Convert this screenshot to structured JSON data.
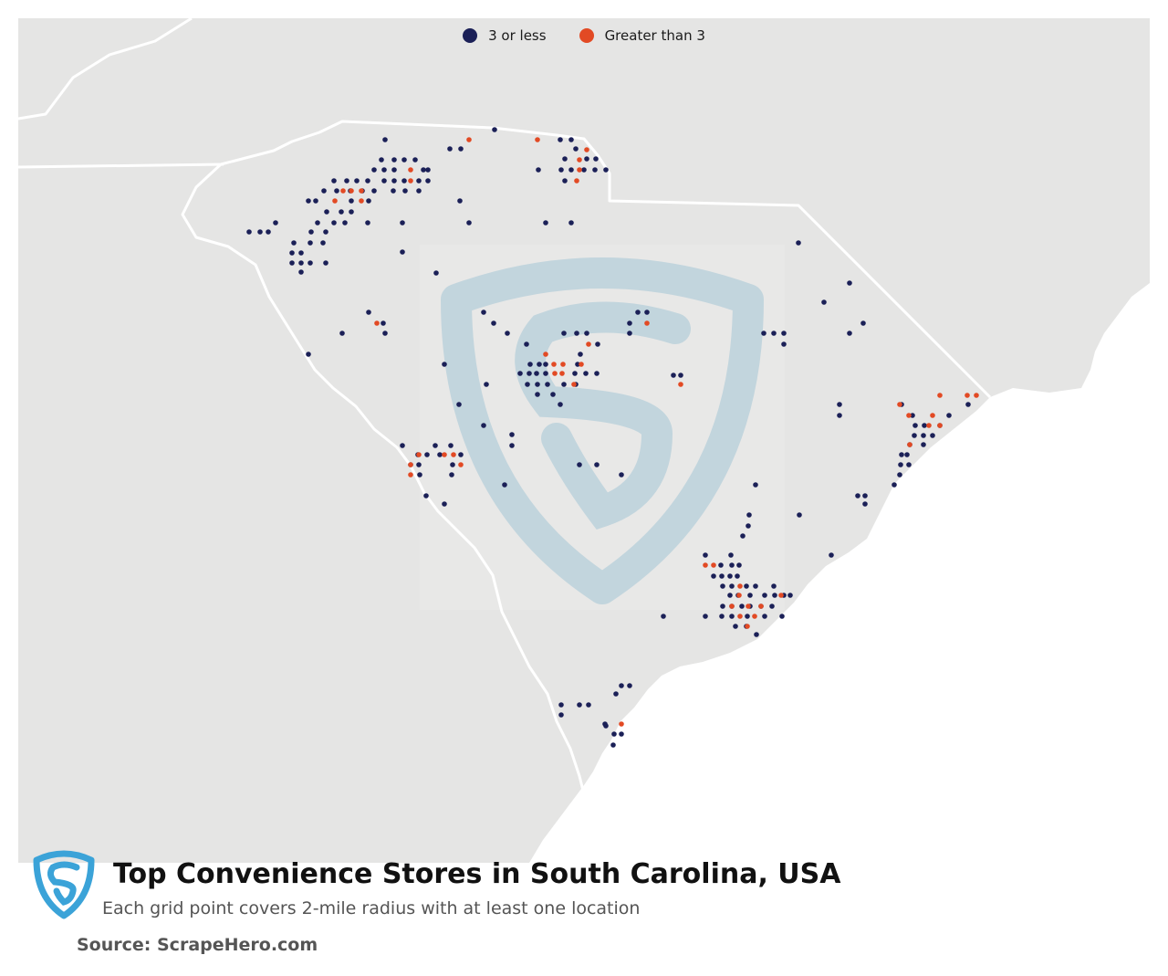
{
  "legend": {
    "low_label": "3 or less",
    "high_label": "Greater than 3"
  },
  "colors": {
    "low": "#1b2057",
    "high": "#e24a24",
    "land": "#e5e5e4",
    "ocean": "#ffffff",
    "border": "#ffffff",
    "watermark": "#a3c4d6",
    "logo": "#3ba3d8"
  },
  "footer": {
    "title": "Top Convenience Stores in South Carolina, USA",
    "subtitle": "Each grid point covers 2-mile radius with at least one location",
    "source": "Source: ScrapeHero.com"
  },
  "icons": {
    "logo": "scrapehero-shield-logo",
    "watermark": "scrapehero-shield-watermark"
  },
  "points": {
    "low": [
      [
        542,
        142
      ],
      [
        422,
        153
      ],
      [
        493,
        163
      ],
      [
        505,
        163
      ],
      [
        614,
        153
      ],
      [
        626,
        153
      ],
      [
        631,
        163
      ],
      [
        418,
        175
      ],
      [
        432,
        175
      ],
      [
        443,
        175
      ],
      [
        455,
        175
      ],
      [
        619,
        174
      ],
      [
        643,
        174
      ],
      [
        653,
        174
      ],
      [
        410,
        186
      ],
      [
        421,
        186
      ],
      [
        432,
        186
      ],
      [
        464,
        186
      ],
      [
        469,
        186
      ],
      [
        590,
        186
      ],
      [
        615,
        186
      ],
      [
        626,
        186
      ],
      [
        640,
        186
      ],
      [
        652,
        186
      ],
      [
        664,
        186
      ],
      [
        366,
        198
      ],
      [
        380,
        198
      ],
      [
        391,
        198
      ],
      [
        403,
        198
      ],
      [
        421,
        198
      ],
      [
        432,
        198
      ],
      [
        443,
        198
      ],
      [
        459,
        198
      ],
      [
        469,
        198
      ],
      [
        619,
        198
      ],
      [
        355,
        209
      ],
      [
        369,
        209
      ],
      [
        384,
        209
      ],
      [
        397,
        209
      ],
      [
        410,
        209
      ],
      [
        431,
        209
      ],
      [
        444,
        209
      ],
      [
        459,
        209
      ],
      [
        338,
        220
      ],
      [
        346,
        220
      ],
      [
        385,
        220
      ],
      [
        404,
        220
      ],
      [
        504,
        220
      ],
      [
        358,
        232
      ],
      [
        374,
        232
      ],
      [
        385,
        232
      ],
      [
        348,
        244
      ],
      [
        366,
        244
      ],
      [
        378,
        244
      ],
      [
        403,
        244
      ],
      [
        441,
        244
      ],
      [
        514,
        244
      ],
      [
        598,
        244
      ],
      [
        626,
        244
      ],
      [
        273,
        254
      ],
      [
        285,
        254
      ],
      [
        294,
        254
      ],
      [
        302,
        244
      ],
      [
        341,
        254
      ],
      [
        357,
        254
      ],
      [
        322,
        266
      ],
      [
        340,
        266
      ],
      [
        354,
        266
      ],
      [
        875,
        266
      ],
      [
        441,
        276
      ],
      [
        320,
        277
      ],
      [
        330,
        277
      ],
      [
        320,
        288
      ],
      [
        330,
        288
      ],
      [
        340,
        288
      ],
      [
        357,
        288
      ],
      [
        330,
        298
      ],
      [
        478,
        299
      ],
      [
        931,
        310
      ],
      [
        903,
        331
      ],
      [
        404,
        342
      ],
      [
        530,
        342
      ],
      [
        699,
        342
      ],
      [
        709,
        342
      ],
      [
        420,
        354
      ],
      [
        541,
        354
      ],
      [
        690,
        354
      ],
      [
        946,
        354
      ],
      [
        375,
        365
      ],
      [
        422,
        365
      ],
      [
        556,
        365
      ],
      [
        618,
        365
      ],
      [
        632,
        365
      ],
      [
        643,
        365
      ],
      [
        690,
        365
      ],
      [
        837,
        365
      ],
      [
        848,
        365
      ],
      [
        859,
        365
      ],
      [
        931,
        365
      ],
      [
        577,
        377
      ],
      [
        655,
        377
      ],
      [
        859,
        377
      ],
      [
        338,
        388
      ],
      [
        636,
        388
      ],
      [
        487,
        399
      ],
      [
        581,
        399
      ],
      [
        591,
        399
      ],
      [
        598,
        399
      ],
      [
        633,
        399
      ],
      [
        570,
        409
      ],
      [
        580,
        409
      ],
      [
        588,
        409
      ],
      [
        598,
        409
      ],
      [
        630,
        409
      ],
      [
        642,
        409
      ],
      [
        654,
        409
      ],
      [
        738,
        411
      ],
      [
        746,
        411
      ],
      [
        578,
        421
      ],
      [
        589,
        421
      ],
      [
        600,
        421
      ],
      [
        618,
        421
      ],
      [
        631,
        421
      ],
      [
        533,
        421
      ],
      [
        589,
        432
      ],
      [
        606,
        432
      ],
      [
        614,
        443
      ],
      [
        503,
        443
      ],
      [
        920,
        443
      ],
      [
        988,
        443
      ],
      [
        920,
        455
      ],
      [
        1000,
        455
      ],
      [
        1040,
        455
      ],
      [
        1061,
        443
      ],
      [
        1003,
        466
      ],
      [
        1013,
        466
      ],
      [
        1030,
        466
      ],
      [
        530,
        466
      ],
      [
        561,
        476
      ],
      [
        1002,
        477
      ],
      [
        1012,
        477
      ],
      [
        1022,
        477
      ],
      [
        441,
        488
      ],
      [
        477,
        488
      ],
      [
        494,
        488
      ],
      [
        561,
        488
      ],
      [
        997,
        487
      ],
      [
        1012,
        487
      ],
      [
        458,
        498
      ],
      [
        468,
        498
      ],
      [
        482,
        498
      ],
      [
        505,
        498
      ],
      [
        988,
        498
      ],
      [
        994,
        498
      ],
      [
        450,
        509
      ],
      [
        459,
        509
      ],
      [
        496,
        509
      ],
      [
        635,
        509
      ],
      [
        654,
        509
      ],
      [
        987,
        509
      ],
      [
        996,
        509
      ],
      [
        460,
        520
      ],
      [
        495,
        520
      ],
      [
        681,
        520
      ],
      [
        986,
        520
      ],
      [
        553,
        531
      ],
      [
        828,
        531
      ],
      [
        980,
        531
      ],
      [
        940,
        543
      ],
      [
        948,
        543
      ],
      [
        467,
        543
      ],
      [
        487,
        552
      ],
      [
        948,
        552
      ],
      [
        821,
        564
      ],
      [
        876,
        564
      ],
      [
        820,
        576
      ],
      [
        814,
        587
      ],
      [
        773,
        608
      ],
      [
        801,
        608
      ],
      [
        911,
        608
      ],
      [
        790,
        619
      ],
      [
        802,
        619
      ],
      [
        810,
        619
      ],
      [
        782,
        631
      ],
      [
        791,
        631
      ],
      [
        800,
        631
      ],
      [
        808,
        631
      ],
      [
        792,
        642
      ],
      [
        802,
        642
      ],
      [
        818,
        642
      ],
      [
        828,
        642
      ],
      [
        848,
        642
      ],
      [
        800,
        652
      ],
      [
        809,
        652
      ],
      [
        822,
        652
      ],
      [
        838,
        652
      ],
      [
        849,
        652
      ],
      [
        859,
        652
      ],
      [
        866,
        652
      ],
      [
        792,
        664
      ],
      [
        802,
        664
      ],
      [
        813,
        664
      ],
      [
        822,
        664
      ],
      [
        834,
        664
      ],
      [
        846,
        664
      ],
      [
        727,
        675
      ],
      [
        773,
        675
      ],
      [
        791,
        675
      ],
      [
        802,
        675
      ],
      [
        819,
        675
      ],
      [
        838,
        675
      ],
      [
        857,
        675
      ],
      [
        806,
        686
      ],
      [
        818,
        686
      ],
      [
        829,
        695
      ],
      [
        681,
        751
      ],
      [
        690,
        751
      ],
      [
        675,
        760
      ],
      [
        615,
        772
      ],
      [
        635,
        772
      ],
      [
        645,
        772
      ],
      [
        615,
        783
      ],
      [
        663,
        793
      ],
      [
        664,
        795
      ],
      [
        673,
        804
      ],
      [
        681,
        804
      ],
      [
        672,
        816
      ]
    ],
    "high": [
      [
        514,
        153
      ],
      [
        589,
        153
      ],
      [
        643,
        164
      ],
      [
        635,
        175
      ],
      [
        450,
        186
      ],
      [
        635,
        186
      ],
      [
        376,
        209
      ],
      [
        385,
        209
      ],
      [
        396,
        209
      ],
      [
        450,
        198
      ],
      [
        632,
        198
      ],
      [
        367,
        220
      ],
      [
        396,
        220
      ],
      [
        709,
        354
      ],
      [
        413,
        354
      ],
      [
        645,
        377
      ],
      [
        598,
        388
      ],
      [
        607,
        399
      ],
      [
        617,
        399
      ],
      [
        637,
        399
      ],
      [
        608,
        409
      ],
      [
        616,
        409
      ],
      [
        746,
        421
      ],
      [
        629,
        421
      ],
      [
        986,
        443
      ],
      [
        1030,
        433
      ],
      [
        1060,
        433
      ],
      [
        1070,
        433
      ],
      [
        996,
        455
      ],
      [
        1022,
        455
      ],
      [
        1018,
        466
      ],
      [
        1030,
        466
      ],
      [
        997,
        487
      ],
      [
        459,
        498
      ],
      [
        487,
        498
      ],
      [
        497,
        498
      ],
      [
        450,
        509
      ],
      [
        505,
        509
      ],
      [
        450,
        520
      ],
      [
        773,
        619
      ],
      [
        782,
        619
      ],
      [
        811,
        642
      ],
      [
        810,
        652
      ],
      [
        856,
        652
      ],
      [
        802,
        664
      ],
      [
        820,
        664
      ],
      [
        834,
        664
      ],
      [
        811,
        675
      ],
      [
        827,
        675
      ],
      [
        819,
        686
      ],
      [
        681,
        793
      ]
    ]
  }
}
